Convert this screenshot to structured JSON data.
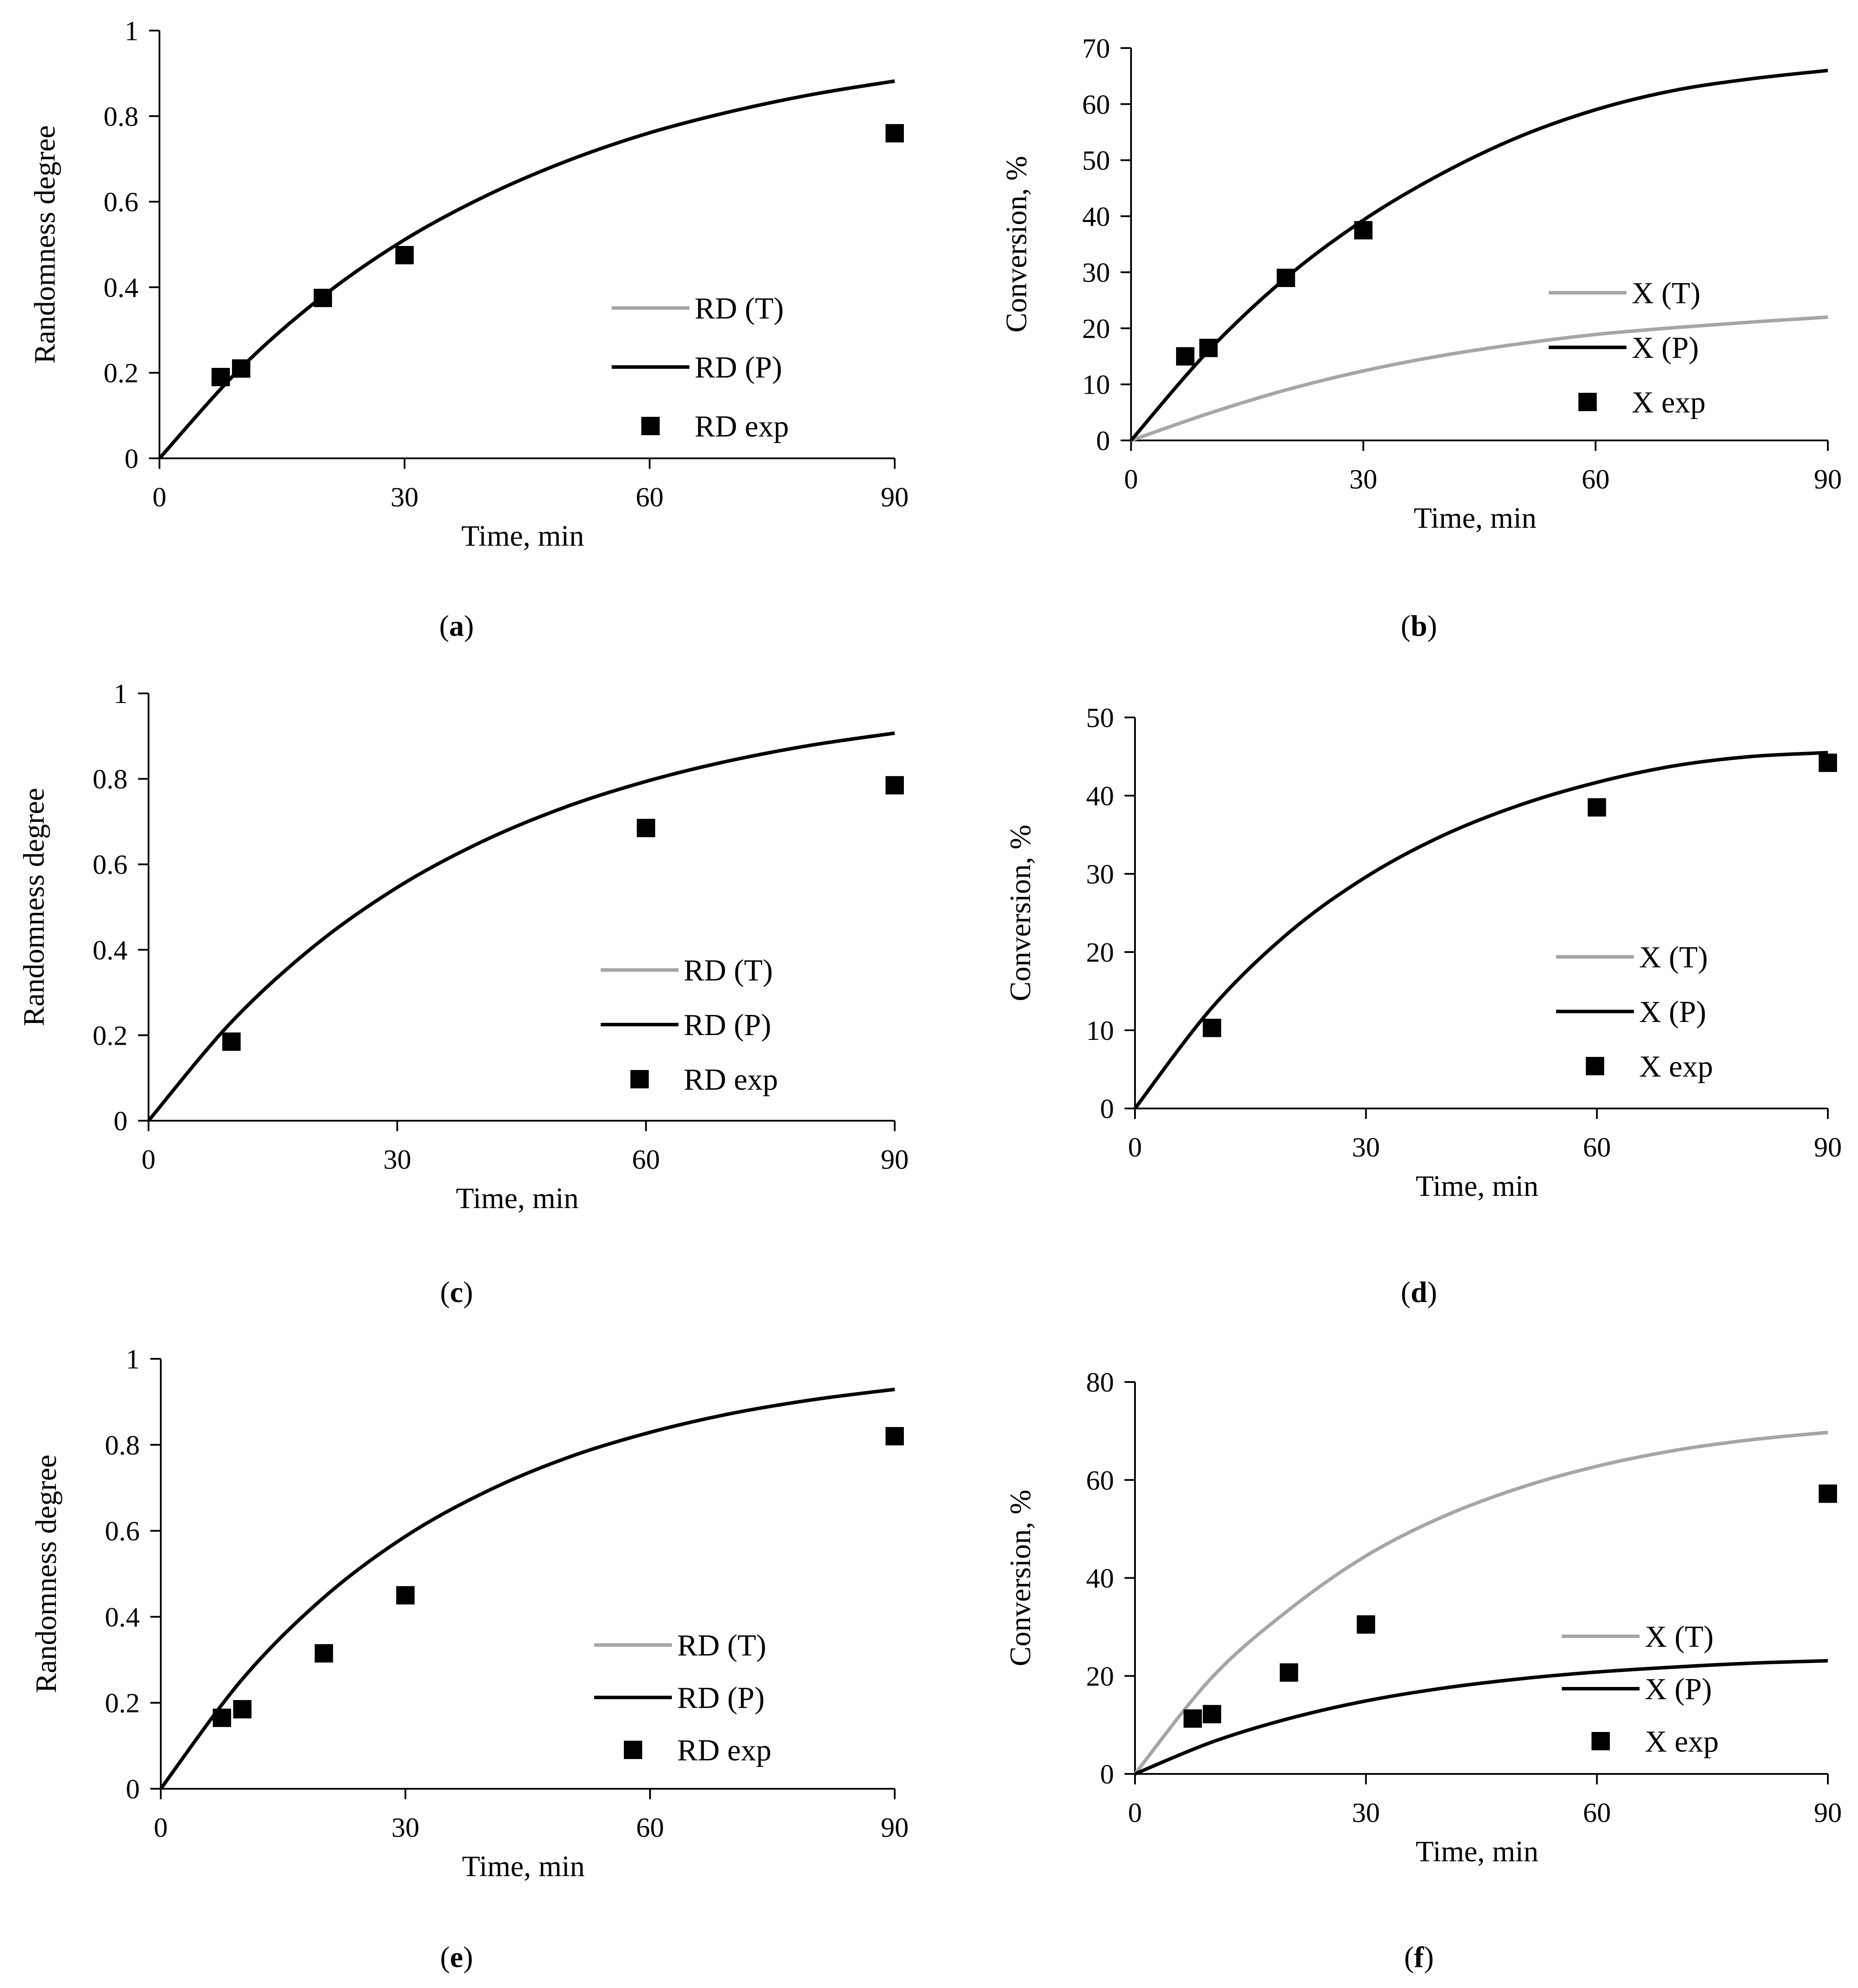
{
  "figure": {
    "chart_data": [
      {
        "id": "a",
        "type": "line",
        "caption": "a",
        "xlabel": "Time, min",
        "ylabel": "Randomness degree",
        "xlim": [
          0,
          90
        ],
        "ylim": [
          0,
          1
        ],
        "xticks": [
          "0",
          "30",
          "60",
          "90"
        ],
        "yticks": [
          "0",
          "0.2",
          "0.4",
          "0.6",
          "0.8",
          "1"
        ],
        "series": [
          {
            "name": "RD (T)",
            "kind": "line",
            "color": "#a6a6a6",
            "x": [
              0,
              10,
              20,
              30,
              40,
              50,
              60,
              70,
              80,
              90
            ],
            "y": [
              0,
              0.212,
              0.379,
              0.511,
              0.614,
              0.696,
              0.761,
              0.811,
              0.851,
              0.882
            ]
          },
          {
            "name": "RD (P)",
            "kind": "line",
            "color": "#000000",
            "x": [
              0,
              10,
              20,
              30,
              40,
              50,
              60,
              70,
              80,
              90
            ],
            "y": [
              0,
              0.212,
              0.379,
              0.511,
              0.614,
              0.696,
              0.761,
              0.811,
              0.851,
              0.882
            ]
          },
          {
            "name": "RD exp",
            "kind": "marker",
            "color": "#000000",
            "x": [
              7.5,
              10,
              20,
              30,
              90
            ],
            "y": [
              0.19,
              0.21,
              0.375,
              0.475,
              0.76
            ]
          }
        ]
      },
      {
        "id": "b",
        "type": "line",
        "caption": "b",
        "xlabel": "Time, min",
        "ylabel": "Conversion, %",
        "xlim": [
          0,
          90
        ],
        "ylim": [
          0,
          70
        ],
        "xticks": [
          "0",
          "30",
          "60",
          "90"
        ],
        "yticks": [
          "0",
          "10",
          "20",
          "30",
          "40",
          "50",
          "60",
          "70"
        ],
        "series": [
          {
            "name": "X (T)",
            "kind": "line",
            "color": "#a6a6a6",
            "x": [
              0,
              10,
              20,
              30,
              40,
              50,
              60,
              70,
              80,
              90
            ],
            "y": [
              0,
              4.8,
              9.0,
              12.4,
              15.1,
              17.2,
              18.9,
              20.1,
              21.1,
              22.0
            ]
          },
          {
            "name": "X (P)",
            "kind": "line",
            "color": "#000000",
            "x": [
              0,
              10,
              20,
              30,
              40,
              50,
              60,
              70,
              80,
              90
            ],
            "y": [
              0,
              16.0,
              29.0,
              39.3,
              47.5,
              54.1,
              59.0,
              62.4,
              64.5,
              66.0
            ]
          },
          {
            "name": "X exp",
            "kind": "marker",
            "color": "#000000",
            "x": [
              7,
              10,
              20,
              30
            ],
            "y": [
              15,
              16.5,
              29,
              37.5
            ]
          }
        ]
      },
      {
        "id": "c",
        "type": "line",
        "caption": "c",
        "xlabel": "Time, min",
        "ylabel": "Randomness degree",
        "xlim": [
          0,
          90
        ],
        "ylim": [
          0,
          1
        ],
        "xticks": [
          "0",
          "30",
          "60",
          "90"
        ],
        "yticks": [
          "0",
          "0.2",
          "0.4",
          "0.6",
          "0.8",
          "1"
        ],
        "series": [
          {
            "name": "RD (T)",
            "kind": "line",
            "color": "#a6a6a6",
            "x": [
              0,
              10,
              20,
              30,
              40,
              50,
              60,
              70,
              80,
              90
            ],
            "y": [
              0,
              0.231,
              0.409,
              0.546,
              0.651,
              0.732,
              0.794,
              0.842,
              0.879,
              0.907
            ]
          },
          {
            "name": "RD (P)",
            "kind": "line",
            "color": "#000000",
            "x": [
              0,
              10,
              20,
              30,
              40,
              50,
              60,
              70,
              80,
              90
            ],
            "y": [
              0,
              0.231,
              0.409,
              0.546,
              0.651,
              0.732,
              0.794,
              0.842,
              0.879,
              0.907
            ]
          },
          {
            "name": "RD exp",
            "kind": "marker",
            "color": "#000000",
            "x": [
              10,
              60,
              90
            ],
            "y": [
              0.185,
              0.685,
              0.785
            ]
          }
        ]
      },
      {
        "id": "d",
        "type": "line",
        "caption": "d",
        "xlabel": "Time, min",
        "ylabel": "Conversion, %",
        "xlim": [
          0,
          90
        ],
        "ylim": [
          0,
          50
        ],
        "xticks": [
          "0",
          "30",
          "60",
          "90"
        ],
        "yticks": [
          "0",
          "10",
          "20",
          "30",
          "40",
          "50"
        ],
        "series": [
          {
            "name": "X (T)",
            "kind": "line",
            "color": "#a6a6a6",
            "x": [
              0,
              10,
              20,
              30,
              40,
              50,
              60,
              70,
              80,
              90
            ],
            "y": [
              0,
              12.9,
              22.5,
              29.6,
              34.9,
              38.8,
              41.7,
              43.8,
              45.0,
              45.5
            ]
          },
          {
            "name": "X (P)",
            "kind": "line",
            "color": "#000000",
            "x": [
              0,
              10,
              20,
              30,
              40,
              50,
              60,
              70,
              80,
              90
            ],
            "y": [
              0,
              12.9,
              22.5,
              29.6,
              34.9,
              38.8,
              41.7,
              43.8,
              45.0,
              45.5
            ]
          },
          {
            "name": "X exp",
            "kind": "marker",
            "color": "#000000",
            "x": [
              10,
              60,
              90
            ],
            "y": [
              10.3,
              38.5,
              44.2
            ]
          }
        ]
      },
      {
        "id": "e",
        "type": "line",
        "caption": "e",
        "xlabel": "Time, min",
        "ylabel": "Randomness degree",
        "xlim": [
          0,
          90
        ],
        "ylim": [
          0,
          1
        ],
        "xticks": [
          "0",
          "30",
          "60",
          "90"
        ],
        "yticks": [
          "0",
          "0.2",
          "0.4",
          "0.6",
          "0.8",
          "1"
        ],
        "series": [
          {
            "name": "RD (T)",
            "kind": "line",
            "color": "#a6a6a6",
            "x": [
              0,
              10,
              20,
              30,
              40,
              50,
              60,
              70,
              80,
              90
            ],
            "y": [
              0,
              0.255,
              0.445,
              0.587,
              0.692,
              0.771,
              0.829,
              0.873,
              0.905,
              0.929
            ]
          },
          {
            "name": "RD (P)",
            "kind": "line",
            "color": "#000000",
            "x": [
              0,
              10,
              20,
              30,
              40,
              50,
              60,
              70,
              80,
              90
            ],
            "y": [
              0,
              0.255,
              0.445,
              0.587,
              0.692,
              0.771,
              0.829,
              0.873,
              0.905,
              0.929
            ]
          },
          {
            "name": "RD exp",
            "kind": "marker",
            "color": "#000000",
            "x": [
              7.5,
              10,
              20,
              30,
              90
            ],
            "y": [
              0.165,
              0.185,
              0.315,
              0.45,
              0.82
            ]
          }
        ]
      },
      {
        "id": "f",
        "type": "line",
        "caption": "f",
        "xlabel": "Time, min",
        "ylabel": "Conversion, %",
        "xlim": [
          0,
          90
        ],
        "ylim": [
          0,
          80
        ],
        "xticks": [
          "0",
          "30",
          "60",
          "90"
        ],
        "yticks": [
          "0",
          "20",
          "40",
          "60",
          "80"
        ],
        "series": [
          {
            "name": "X (T)",
            "kind": "line",
            "color": "#a6a6a6",
            "x": [
              0,
              10,
              20,
              30,
              40,
              50,
              60,
              70,
              80,
              90
            ],
            "y": [
              0,
              19.7,
              33.5,
              44.5,
              52.5,
              58.4,
              62.8,
              66.0,
              68.2,
              69.7
            ]
          },
          {
            "name": "X (P)",
            "kind": "line",
            "color": "#000000",
            "x": [
              0,
              10,
              20,
              30,
              40,
              50,
              60,
              70,
              80,
              90
            ],
            "y": [
              0,
              6.5,
              11.3,
              14.9,
              17.5,
              19.4,
              20.8,
              21.8,
              22.6,
              23.1
            ]
          },
          {
            "name": "X exp",
            "kind": "marker",
            "color": "#000000",
            "x": [
              7.5,
              10,
              20,
              30,
              90
            ],
            "y": [
              11.3,
              12.2,
              20.7,
              30.5,
              57.2
            ]
          }
        ]
      }
    ]
  }
}
